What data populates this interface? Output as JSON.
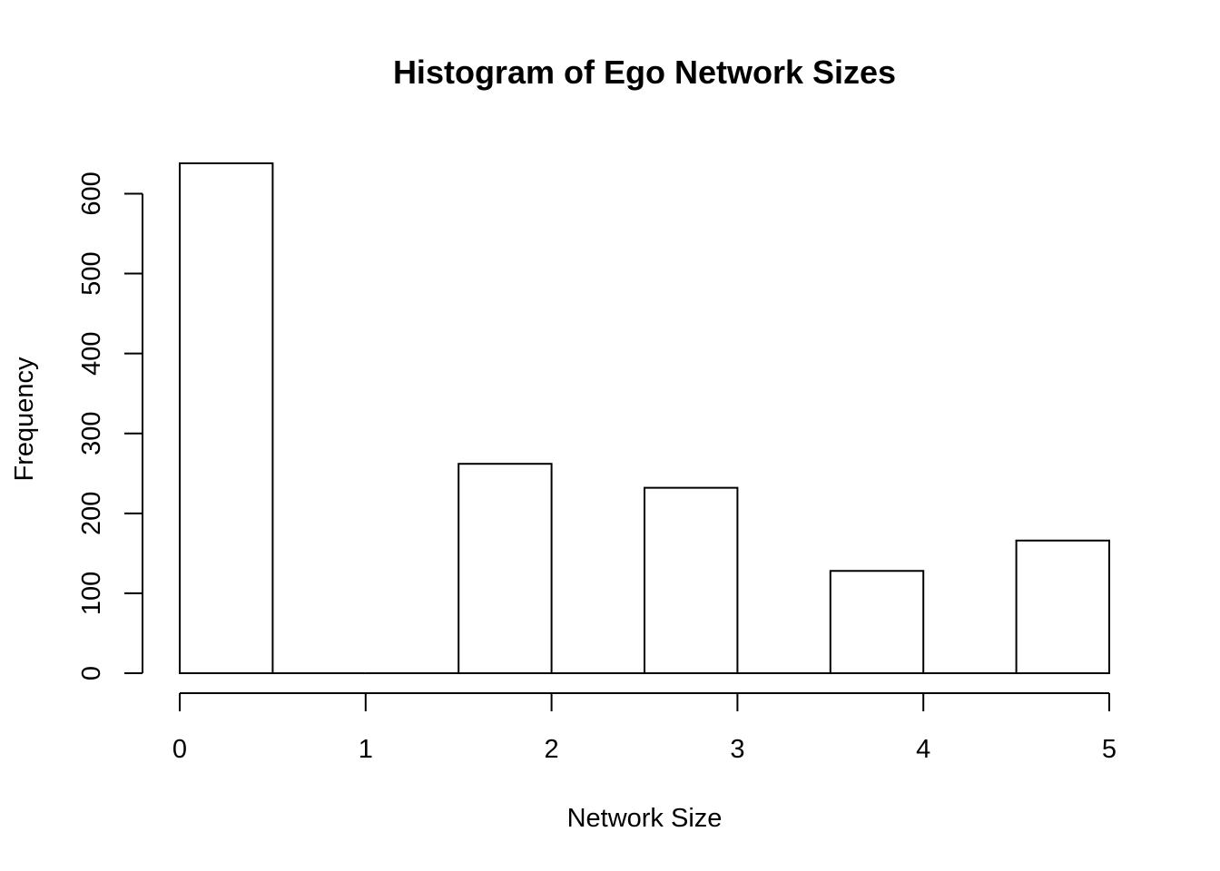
{
  "chart_data": {
    "type": "bar",
    "title": "Histogram of Ego Network Sizes",
    "xlabel": "Network Size",
    "ylabel": "Frequency",
    "bins": [
      {
        "start": 0.0,
        "end": 0.5,
        "count": 638
      },
      {
        "start": 0.5,
        "end": 1.0,
        "count": 0
      },
      {
        "start": 1.0,
        "end": 1.5,
        "count": 0
      },
      {
        "start": 1.5,
        "end": 2.0,
        "count": 262
      },
      {
        "start": 2.0,
        "end": 2.5,
        "count": 0
      },
      {
        "start": 2.5,
        "end": 3.0,
        "count": 232
      },
      {
        "start": 3.0,
        "end": 3.5,
        "count": 0
      },
      {
        "start": 3.5,
        "end": 4.0,
        "count": 128
      },
      {
        "start": 4.0,
        "end": 4.5,
        "count": 0
      },
      {
        "start": 4.5,
        "end": 5.0,
        "count": 166
      }
    ],
    "xlim": [
      0,
      5
    ],
    "ylim": [
      0,
      638
    ],
    "xticks": [
      "0",
      "1",
      "2",
      "3",
      "4",
      "5"
    ],
    "yticks": [
      "0",
      "100",
      "200",
      "300",
      "400",
      "500",
      "600"
    ],
    "grid": false,
    "bar_fill": "#ffffff",
    "bar_stroke": "#000000"
  }
}
